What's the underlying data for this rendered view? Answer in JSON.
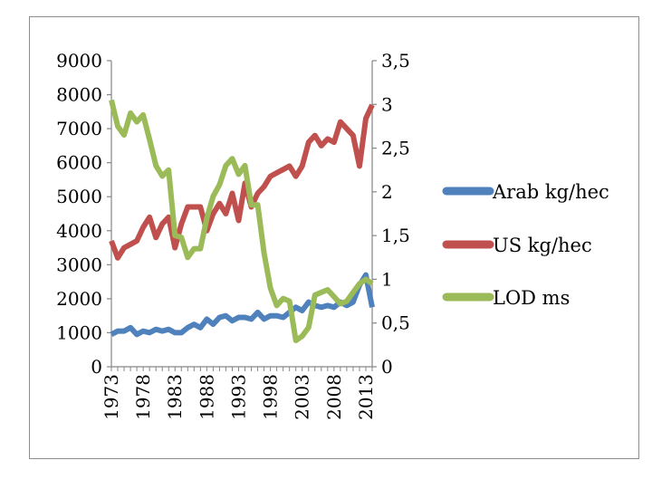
{
  "chart_data": {
    "type": "line",
    "title": "",
    "xlabel": "",
    "ylabel": "",
    "y2label": "",
    "x": [
      1973,
      1974,
      1975,
      1976,
      1977,
      1978,
      1979,
      1980,
      1981,
      1982,
      1983,
      1984,
      1985,
      1986,
      1987,
      1988,
      1989,
      1990,
      1991,
      1992,
      1993,
      1994,
      1995,
      1996,
      1997,
      1998,
      1999,
      2000,
      2001,
      2002,
      2003,
      2004,
      2005,
      2006,
      2007,
      2008,
      2009,
      2010,
      2011,
      2012,
      2013,
      2014
    ],
    "x_tick_labels": [
      "1973",
      "1978",
      "1983",
      "1988",
      "1993",
      "1998",
      "2003",
      "2008",
      "2013"
    ],
    "y_left": {
      "ylim": [
        0,
        9000
      ],
      "ticks": [
        "0",
        "1000",
        "2000",
        "3000",
        "4000",
        "5000",
        "6000",
        "7000",
        "8000",
        "9000"
      ]
    },
    "y_right": {
      "ylim": [
        0,
        3.5
      ],
      "ticks": [
        "0",
        "0,5",
        "1",
        "1,5",
        "2",
        "2,5",
        "3",
        "3,5"
      ]
    },
    "grid": false,
    "legend_position": "right",
    "series": [
      {
        "name": "Arab kg/hec",
        "color": "#4f81bd",
        "axis": "left",
        "values": [
          950,
          1050,
          1050,
          1150,
          950,
          1050,
          1000,
          1100,
          1050,
          1100,
          1000,
          1000,
          1150,
          1250,
          1150,
          1400,
          1250,
          1450,
          1500,
          1350,
          1450,
          1450,
          1400,
          1600,
          1400,
          1500,
          1500,
          1450,
          1600,
          1750,
          1650,
          1900,
          1800,
          1750,
          1800,
          1750,
          1900,
          1800,
          1900,
          2400,
          2700,
          1750
        ]
      },
      {
        "name": "US kg/hec",
        "color": "#c0504d",
        "axis": "left",
        "values": [
          3700,
          3200,
          3500,
          3600,
          3700,
          4100,
          4400,
          3800,
          4200,
          4400,
          3500,
          4200,
          4700,
          4700,
          4700,
          4000,
          4500,
          4800,
          4500,
          5100,
          4300,
          5400,
          4700,
          5100,
          5300,
          5600,
          5700,
          5800,
          5900,
          5600,
          5900,
          6600,
          6800,
          6500,
          6700,
          6600,
          7200,
          7000,
          6800,
          5900,
          7300,
          7700
        ]
      },
      {
        "name": "LOD ms",
        "color": "#9bbb59",
        "axis": "right",
        "values": [
          3.05,
          2.75,
          2.65,
          2.9,
          2.8,
          2.88,
          2.6,
          2.3,
          2.18,
          2.25,
          1.5,
          1.48,
          1.25,
          1.35,
          1.35,
          1.7,
          1.95,
          2.08,
          2.3,
          2.38,
          2.2,
          2.3,
          1.85,
          1.85,
          1.3,
          0.9,
          0.7,
          0.78,
          0.75,
          0.3,
          0.35,
          0.45,
          0.82,
          0.85,
          0.88,
          0.8,
          0.72,
          0.75,
          0.85,
          0.95,
          1.0,
          0.95
        ]
      }
    ]
  }
}
